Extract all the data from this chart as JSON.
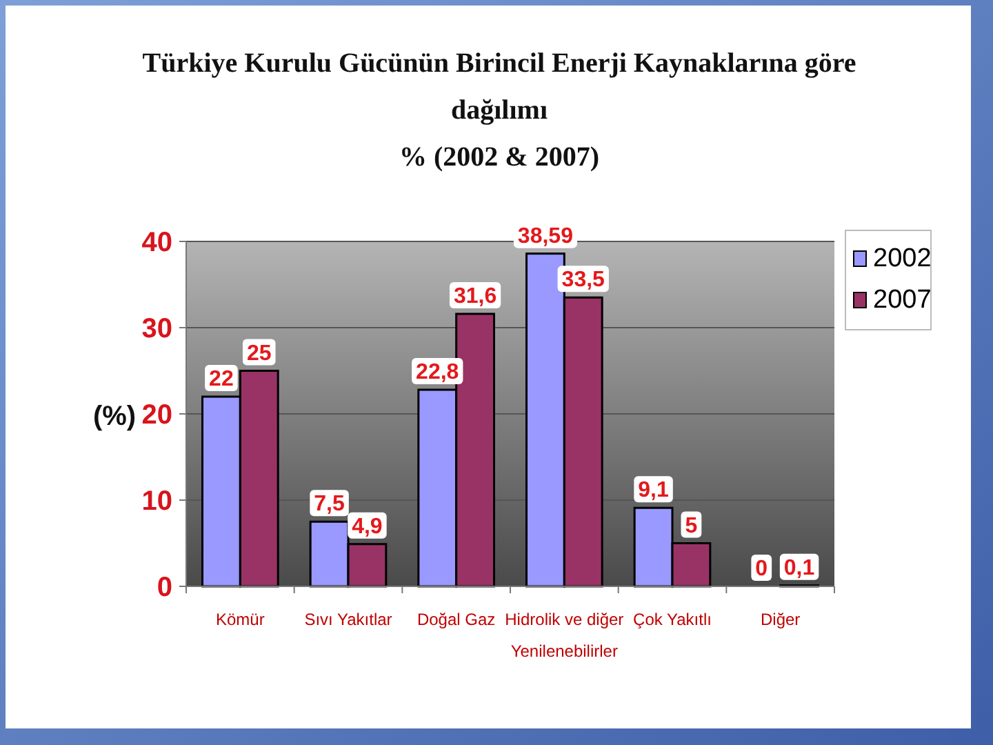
{
  "chart_data": {
    "type": "bar",
    "title": "Türkiye Kurulu Gücünün Birincil Enerji Kaynaklarına göre dağılımı",
    "subtitle": "% (2002 & 2007)",
    "ylabel": "(%)",
    "categories": [
      "Kömür",
      "Sıvı Yakıtlar",
      "Doğal Gaz",
      "Hidrolik ve diğer Yenilenebilirler",
      "Çok Yakıtlı",
      "Diğer"
    ],
    "series": [
      {
        "name": "2002",
        "color": "#9999ff",
        "values": [
          22,
          7.5,
          22.8,
          38.59,
          9.1,
          0
        ],
        "value_labels": [
          "22",
          "7,5",
          "22,8",
          "38,59",
          "9,1",
          "0"
        ]
      },
      {
        "name": "2007",
        "color": "#993366",
        "values": [
          25,
          4.9,
          31.6,
          33.5,
          5,
          0.1
        ],
        "value_labels": [
          "25",
          "4,9",
          "31,6",
          "33,5",
          "5",
          "0,1"
        ]
      }
    ],
    "ylim": [
      0,
      40
    ],
    "yticks": [
      0,
      10,
      20,
      30,
      40
    ],
    "grid": "y",
    "legend": "right"
  }
}
